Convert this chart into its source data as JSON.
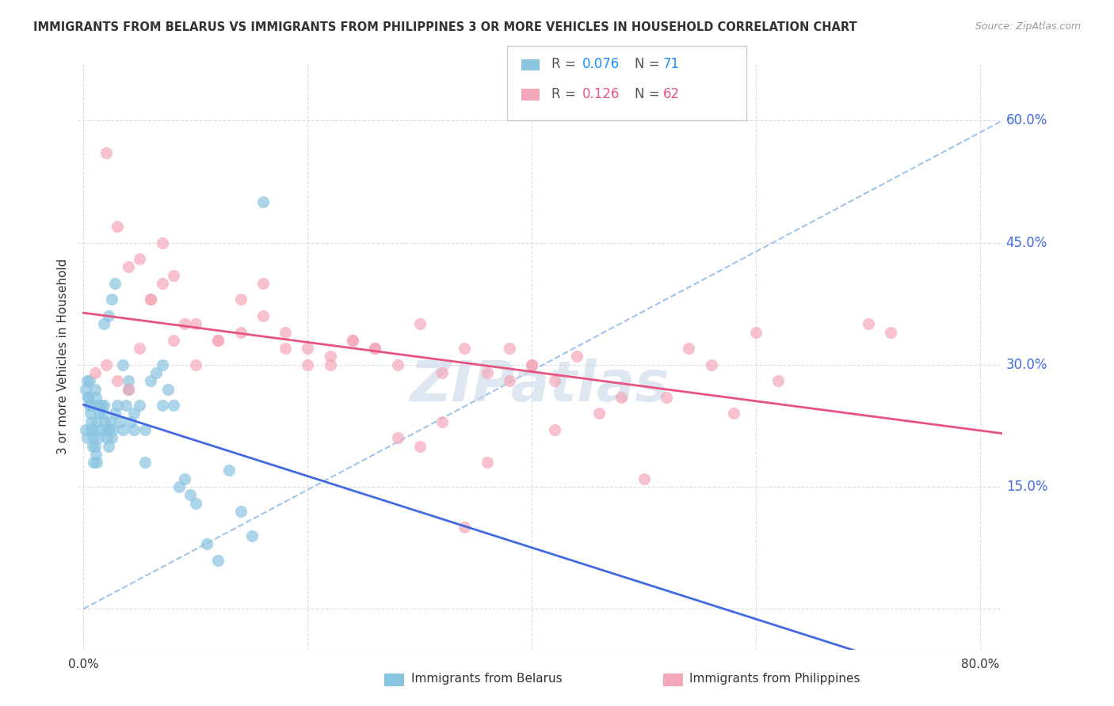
{
  "title": "IMMIGRANTS FROM BELARUS VS IMMIGRANTS FROM PHILIPPINES 3 OR MORE VEHICLES IN HOUSEHOLD CORRELATION CHART",
  "source": "Source: ZipAtlas.com",
  "ylabel": "3 or more Vehicles in Household",
  "y_ticks": [
    0.0,
    0.15,
    0.3,
    0.45,
    0.6
  ],
  "y_tick_labels_right": [
    "",
    "15.0%",
    "30.0%",
    "45.0%",
    "60.0%"
  ],
  "xlim": [
    -0.005,
    0.82
  ],
  "ylim": [
    -0.05,
    0.67
  ],
  "belarus_R": 0.076,
  "belarus_N": 71,
  "philippines_R": 0.126,
  "philippines_N": 62,
  "color_belarus": "#89C4E1",
  "color_philippines": "#F4A7B9",
  "line_color_belarus": "#4169E1",
  "line_color_philippines": "#E75480",
  "trendline_color_dashed": "#A0C4E8",
  "background_color": "#FFFFFF",
  "grid_color": "#DDDDDD",
  "watermark_text": "ZIPatlas",
  "watermark_color": "#C8D8E8",
  "belarus_x": [
    0.002,
    0.003,
    0.004,
    0.005,
    0.006,
    0.007,
    0.008,
    0.009,
    0.01,
    0.011,
    0.012,
    0.013,
    0.014,
    0.015,
    0.016,
    0.017,
    0.018,
    0.019,
    0.02,
    0.021,
    0.022,
    0.023,
    0.024,
    0.025,
    0.026,
    0.028,
    0.03,
    0.032,
    0.035,
    0.038,
    0.04,
    0.042,
    0.045,
    0.05,
    0.055,
    0.06,
    0.065,
    0.07,
    0.075,
    0.08,
    0.085,
    0.09,
    0.095,
    0.1,
    0.11,
    0.12,
    0.13,
    0.14,
    0.15,
    0.16,
    0.002,
    0.003,
    0.004,
    0.005,
    0.006,
    0.007,
    0.008,
    0.009,
    0.01,
    0.011,
    0.012,
    0.013,
    0.018,
    0.022,
    0.025,
    0.028,
    0.035,
    0.04,
    0.045,
    0.055,
    0.07
  ],
  "belarus_y": [
    0.27,
    0.28,
    0.26,
    0.25,
    0.24,
    0.23,
    0.22,
    0.21,
    0.2,
    0.19,
    0.18,
    0.25,
    0.24,
    0.22,
    0.25,
    0.24,
    0.25,
    0.23,
    0.22,
    0.21,
    0.2,
    0.22,
    0.23,
    0.21,
    0.22,
    0.24,
    0.25,
    0.23,
    0.22,
    0.25,
    0.27,
    0.23,
    0.24,
    0.25,
    0.22,
    0.28,
    0.29,
    0.3,
    0.27,
    0.25,
    0.15,
    0.16,
    0.14,
    0.13,
    0.08,
    0.06,
    0.17,
    0.12,
    0.09,
    0.5,
    0.22,
    0.21,
    0.26,
    0.28,
    0.25,
    0.22,
    0.2,
    0.18,
    0.27,
    0.26,
    0.23,
    0.21,
    0.35,
    0.36,
    0.38,
    0.4,
    0.3,
    0.28,
    0.22,
    0.18,
    0.25
  ],
  "philippines_x": [
    0.01,
    0.02,
    0.03,
    0.04,
    0.05,
    0.06,
    0.07,
    0.08,
    0.09,
    0.1,
    0.12,
    0.14,
    0.16,
    0.18,
    0.2,
    0.22,
    0.24,
    0.26,
    0.28,
    0.3,
    0.32,
    0.34,
    0.36,
    0.38,
    0.4,
    0.42,
    0.44,
    0.46,
    0.48,
    0.5,
    0.52,
    0.54,
    0.56,
    0.58,
    0.6,
    0.62,
    0.7,
    0.72,
    0.02,
    0.03,
    0.04,
    0.05,
    0.06,
    0.07,
    0.08,
    0.1,
    0.12,
    0.14,
    0.16,
    0.18,
    0.2,
    0.22,
    0.24,
    0.26,
    0.28,
    0.3,
    0.32,
    0.34,
    0.36,
    0.38,
    0.4,
    0.42
  ],
  "philippines_y": [
    0.29,
    0.3,
    0.28,
    0.27,
    0.32,
    0.38,
    0.4,
    0.33,
    0.35,
    0.3,
    0.33,
    0.34,
    0.36,
    0.32,
    0.3,
    0.31,
    0.33,
    0.32,
    0.3,
    0.35,
    0.29,
    0.32,
    0.29,
    0.32,
    0.3,
    0.28,
    0.31,
    0.24,
    0.26,
    0.16,
    0.26,
    0.32,
    0.3,
    0.24,
    0.34,
    0.28,
    0.35,
    0.34,
    0.56,
    0.47,
    0.42,
    0.43,
    0.38,
    0.45,
    0.41,
    0.35,
    0.33,
    0.38,
    0.4,
    0.34,
    0.32,
    0.3,
    0.33,
    0.32,
    0.21,
    0.2,
    0.23,
    0.1,
    0.18,
    0.28,
    0.3,
    0.22
  ]
}
